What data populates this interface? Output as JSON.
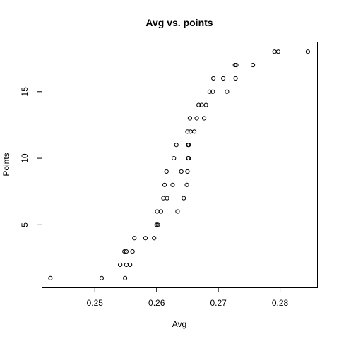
{
  "chart_data": {
    "type": "scatter",
    "title": "Avg vs. points",
    "xlabel": "Avg",
    "ylabel": "Points",
    "xlim": [
      0.2415,
      0.286
    ],
    "ylim": [
      0.3,
      18.7
    ],
    "xticks": [
      0.25,
      0.26,
      0.27,
      0.28
    ],
    "xtick_labels": [
      "0.25",
      "0.26",
      "0.27",
      "0.28"
    ],
    "yticks": [
      5,
      10,
      15
    ],
    "ytick_labels": [
      "5",
      "10",
      "15"
    ],
    "grid": false,
    "points": [
      {
        "x": 0.2428,
        "y": 1
      },
      {
        "x": 0.2511,
        "y": 1
      },
      {
        "x": 0.2549,
        "y": 1
      },
      {
        "x": 0.2541,
        "y": 2
      },
      {
        "x": 0.2551,
        "y": 2
      },
      {
        "x": 0.2557,
        "y": 2
      },
      {
        "x": 0.2548,
        "y": 3
      },
      {
        "x": 0.2551,
        "y": 3
      },
      {
        "x": 0.2561,
        "y": 3
      },
      {
        "x": 0.2564,
        "y": 4
      },
      {
        "x": 0.2582,
        "y": 4
      },
      {
        "x": 0.2596,
        "y": 4
      },
      {
        "x": 0.26,
        "y": 5
      },
      {
        "x": 0.2602,
        "y": 5
      },
      {
        "x": 0.2601,
        "y": 6
      },
      {
        "x": 0.2607,
        "y": 6
      },
      {
        "x": 0.2634,
        "y": 6
      },
      {
        "x": 0.2611,
        "y": 7
      },
      {
        "x": 0.2617,
        "y": 7
      },
      {
        "x": 0.2644,
        "y": 7
      },
      {
        "x": 0.2613,
        "y": 8
      },
      {
        "x": 0.2626,
        "y": 8
      },
      {
        "x": 0.2649,
        "y": 8
      },
      {
        "x": 0.2616,
        "y": 9
      },
      {
        "x": 0.264,
        "y": 9
      },
      {
        "x": 0.265,
        "y": 9
      },
      {
        "x": 0.2628,
        "y": 10
      },
      {
        "x": 0.2651,
        "y": 10
      },
      {
        "x": 0.2652,
        "y": 10
      },
      {
        "x": 0.2632,
        "y": 11
      },
      {
        "x": 0.2651,
        "y": 11
      },
      {
        "x": 0.2652,
        "y": 11
      },
      {
        "x": 0.265,
        "y": 12
      },
      {
        "x": 0.2655,
        "y": 12
      },
      {
        "x": 0.2661,
        "y": 12
      },
      {
        "x": 0.2654,
        "y": 13
      },
      {
        "x": 0.2665,
        "y": 13
      },
      {
        "x": 0.2677,
        "y": 13
      },
      {
        "x": 0.2668,
        "y": 14
      },
      {
        "x": 0.2673,
        "y": 14
      },
      {
        "x": 0.268,
        "y": 14
      },
      {
        "x": 0.2686,
        "y": 15
      },
      {
        "x": 0.2691,
        "y": 15
      },
      {
        "x": 0.2714,
        "y": 15
      },
      {
        "x": 0.2692,
        "y": 16
      },
      {
        "x": 0.2708,
        "y": 16
      },
      {
        "x": 0.2728,
        "y": 16
      },
      {
        "x": 0.2727,
        "y": 17
      },
      {
        "x": 0.2729,
        "y": 17
      },
      {
        "x": 0.2756,
        "y": 17
      },
      {
        "x": 0.2791,
        "y": 18
      },
      {
        "x": 0.2797,
        "y": 18
      },
      {
        "x": 0.2845,
        "y": 18
      }
    ]
  }
}
